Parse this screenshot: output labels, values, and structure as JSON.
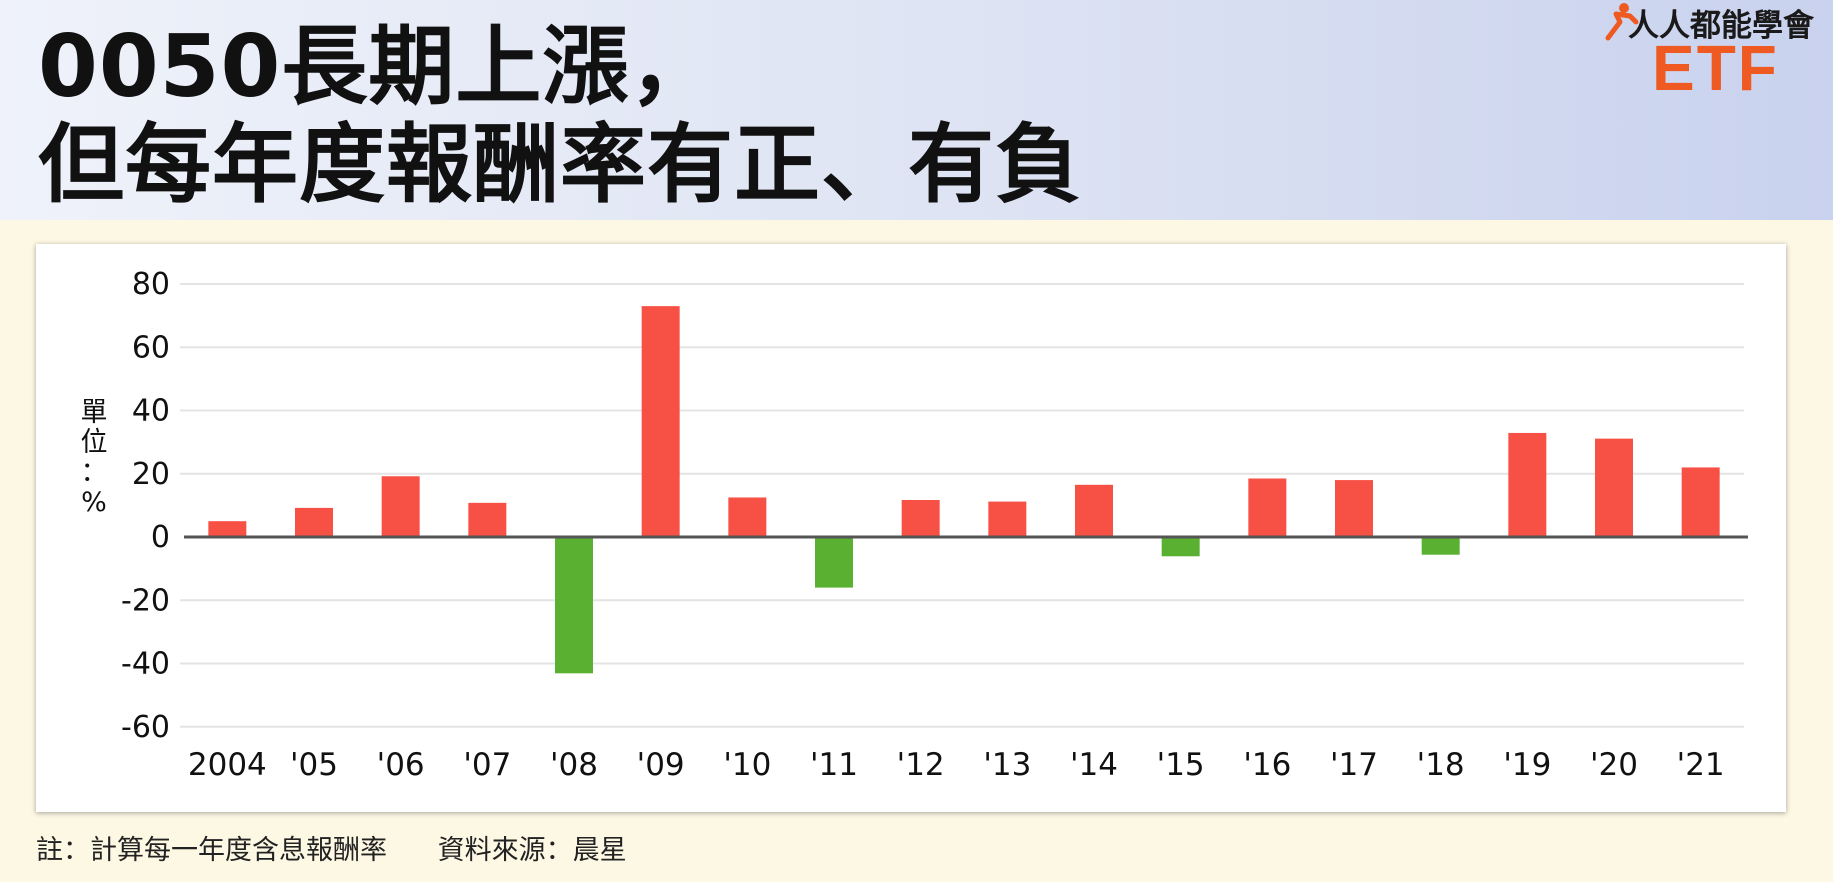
{
  "header": {
    "title_line1": "0050長期上漲，",
    "title_line2": "但每年度報酬率有正、有負"
  },
  "logo": {
    "brand": "人人都能學會",
    "etf": "ETF",
    "icon": "running-person-icon"
  },
  "chart_data": {
    "type": "bar",
    "categories": [
      "2004",
      "'05",
      "'06",
      "'07",
      "'08",
      "'09",
      "'10",
      "'11",
      "'12",
      "'13",
      "'14",
      "'15",
      "'16",
      "'17",
      "'18",
      "'19",
      "'20",
      "'21"
    ],
    "values": [
      5.0,
      9.2,
      19.2,
      10.8,
      -43.1,
      73.0,
      12.5,
      -16.0,
      11.7,
      11.2,
      16.5,
      -6.1,
      18.5,
      18.0,
      -5.6,
      32.9,
      31.1,
      22.0
    ],
    "title": "",
    "xlabel": "",
    "ylabel": "單位：%",
    "ylim": [
      -67,
      82
    ],
    "yticks": [
      80,
      60,
      40,
      20,
      0,
      -20,
      -40,
      -60
    ],
    "positive_color": "#f75044",
    "negative_color": "#5ab031",
    "grid": true,
    "legend": "none"
  },
  "footer": {
    "note": "註：計算每一年度含息報酬率",
    "source": "資料來源：晨星"
  }
}
